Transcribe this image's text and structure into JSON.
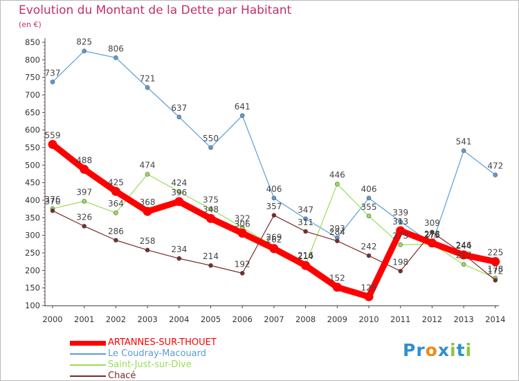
{
  "chart_data": {
    "type": "line",
    "title": "Evolution du Montant de la Dette par Habitant",
    "subtitle": "(en €)",
    "x": [
      "2000",
      "2001",
      "2002",
      "2003",
      "2004",
      "2005",
      "2006",
      "2007",
      "2008",
      "2009",
      "2010",
      "2011",
      "2012",
      "2013",
      "2014"
    ],
    "ylim": [
      100,
      850
    ],
    "yticks": [
      100,
      150,
      200,
      250,
      300,
      350,
      400,
      450,
      500,
      550,
      600,
      650,
      700,
      750,
      800,
      850
    ],
    "grid": false,
    "legend_position": "bottom-left",
    "series": [
      {
        "name": "ARTANNES-SUR-THOUET",
        "color": "#ff0000",
        "values": [
          559,
          488,
          425,
          368,
          396,
          348,
          306,
          262,
          214,
          152,
          125,
          313,
          278,
          244,
          225
        ]
      },
      {
        "name": "Le Coudray-Macouard",
        "color": "#5b9bd5",
        "values": [
          737,
          825,
          806,
          721,
          637,
          550,
          641,
          406,
          347,
          293,
          406,
          339,
          276,
          541,
          472
        ]
      },
      {
        "name": "Saint-Just-sur-Dive",
        "color": "#99dd55",
        "values": [
          376,
          397,
          364,
          474,
          424,
          375,
          322,
          269,
          216,
          446,
          355,
          273,
          275,
          217,
          178
        ]
      },
      {
        "name": "Chacé",
        "color": "#7a2a2a",
        "values": [
          370,
          326,
          286,
          258,
          234,
          214,
          192,
          357,
          311,
          284,
          242,
          198,
          309,
          246,
          172
        ]
      }
    ]
  },
  "logo": {
    "letters": [
      {
        "char": "P",
        "color": "#2e8fd0"
      },
      {
        "char": "r",
        "color": "#2e8fd0"
      },
      {
        "char": "o",
        "color": "#f08a16"
      },
      {
        "char": "x",
        "color": "#2e8fd0"
      },
      {
        "char": "i",
        "color": "#8cc63e"
      },
      {
        "char": "t",
        "color": "#2e8fd0"
      },
      {
        "char": "i",
        "color": "#8cc63e"
      }
    ]
  }
}
